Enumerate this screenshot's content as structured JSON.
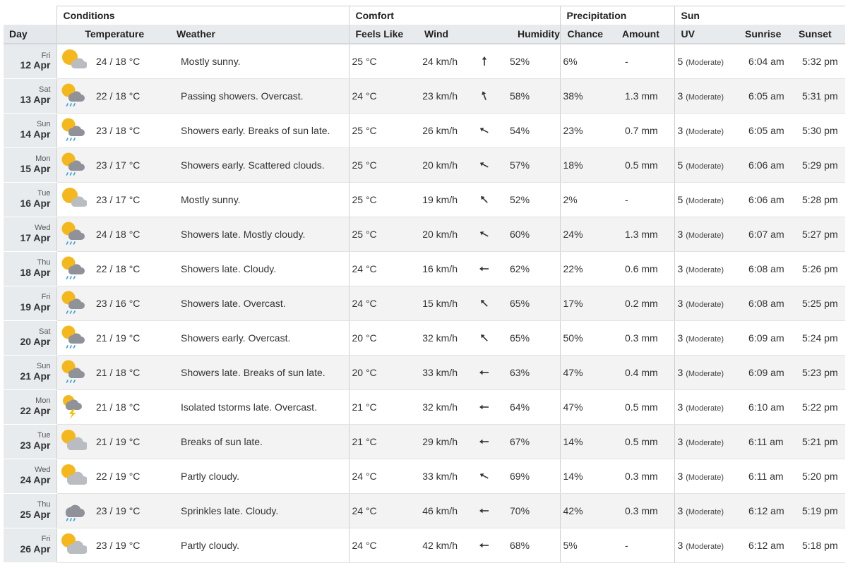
{
  "groups": {
    "conditions": "Conditions",
    "comfort": "Comfort",
    "precipitation": "Precipitation",
    "sun": "Sun"
  },
  "columns": {
    "day": "Day",
    "temperature": "Temperature",
    "weather": "Weather",
    "feels_like": "Feels Like",
    "wind": "Wind",
    "humidity": "Humidity",
    "chance": "Chance",
    "amount": "Amount",
    "uv": "UV",
    "sunrise": "Sunrise",
    "sunset": "Sunset"
  },
  "rows": [
    {
      "dow": "Fri",
      "date": "12 Apr",
      "icon": "mostly-sunny-icon",
      "temp": "24 / 18 °C",
      "weather": "Mostly sunny.",
      "feels": "25 °C",
      "wind": "24 km/h",
      "wind_dir_deg": 0,
      "humidity": "52%",
      "chance": "6%",
      "amount": "-",
      "uv": "5",
      "uv_desc": "(Moderate)",
      "sunrise": "6:04 am",
      "sunset": "5:32 pm"
    },
    {
      "dow": "Sat",
      "date": "13 Apr",
      "icon": "showers-icon",
      "temp": "22 / 18 °C",
      "weather": "Passing showers. Overcast.",
      "feels": "24 °C",
      "wind": "23 km/h",
      "wind_dir_deg": -20,
      "humidity": "58%",
      "chance": "38%",
      "amount": "1.3 mm",
      "uv": "3",
      "uv_desc": "(Moderate)",
      "sunrise": "6:05 am",
      "sunset": "5:31 pm"
    },
    {
      "dow": "Sun",
      "date": "14 Apr",
      "icon": "showers-icon",
      "temp": "23 / 18 °C",
      "weather": "Showers early. Breaks of sun late.",
      "feels": "25 °C",
      "wind": "26 km/h",
      "wind_dir_deg": -62,
      "humidity": "54%",
      "chance": "23%",
      "amount": "0.7 mm",
      "uv": "3",
      "uv_desc": "(Moderate)",
      "sunrise": "6:05 am",
      "sunset": "5:30 pm"
    },
    {
      "dow": "Mon",
      "date": "15 Apr",
      "icon": "showers-icon",
      "temp": "23 / 17 °C",
      "weather": "Showers early. Scattered clouds.",
      "feels": "25 °C",
      "wind": "20 km/h",
      "wind_dir_deg": -62,
      "humidity": "57%",
      "chance": "18%",
      "amount": "0.5 mm",
      "uv": "5",
      "uv_desc": "(Moderate)",
      "sunrise": "6:06 am",
      "sunset": "5:29 pm"
    },
    {
      "dow": "Tue",
      "date": "16 Apr",
      "icon": "mostly-sunny-icon",
      "temp": "23 / 17 °C",
      "weather": "Mostly sunny.",
      "feels": "25 °C",
      "wind": "19 km/h",
      "wind_dir_deg": -45,
      "humidity": "52%",
      "chance": "2%",
      "amount": "-",
      "uv": "5",
      "uv_desc": "(Moderate)",
      "sunrise": "6:06 am",
      "sunset": "5:28 pm"
    },
    {
      "dow": "Wed",
      "date": "17 Apr",
      "icon": "showers-icon",
      "temp": "24 / 18 °C",
      "weather": "Showers late. Mostly cloudy.",
      "feels": "25 °C",
      "wind": "20 km/h",
      "wind_dir_deg": -62,
      "humidity": "60%",
      "chance": "24%",
      "amount": "1.3 mm",
      "uv": "3",
      "uv_desc": "(Moderate)",
      "sunrise": "6:07 am",
      "sunset": "5:27 pm"
    },
    {
      "dow": "Thu",
      "date": "18 Apr",
      "icon": "showers-icon",
      "temp": "22 / 18 °C",
      "weather": "Showers late. Cloudy.",
      "feels": "24 °C",
      "wind": "16 km/h",
      "wind_dir_deg": -90,
      "humidity": "62%",
      "chance": "22%",
      "amount": "0.6 mm",
      "uv": "3",
      "uv_desc": "(Moderate)",
      "sunrise": "6:08 am",
      "sunset": "5:26 pm"
    },
    {
      "dow": "Fri",
      "date": "19 Apr",
      "icon": "showers-icon",
      "temp": "23 / 16 °C",
      "weather": "Showers late. Overcast.",
      "feels": "24 °C",
      "wind": "15 km/h",
      "wind_dir_deg": -45,
      "humidity": "65%",
      "chance": "17%",
      "amount": "0.2 mm",
      "uv": "3",
      "uv_desc": "(Moderate)",
      "sunrise": "6:08 am",
      "sunset": "5:25 pm"
    },
    {
      "dow": "Sat",
      "date": "20 Apr",
      "icon": "showers-icon",
      "temp": "21 / 19 °C",
      "weather": "Showers early. Overcast.",
      "feels": "20 °C",
      "wind": "32 km/h",
      "wind_dir_deg": -45,
      "humidity": "65%",
      "chance": "50%",
      "amount": "0.3 mm",
      "uv": "3",
      "uv_desc": "(Moderate)",
      "sunrise": "6:09 am",
      "sunset": "5:24 pm"
    },
    {
      "dow": "Sun",
      "date": "21 Apr",
      "icon": "showers-icon",
      "temp": "21 / 18 °C",
      "weather": "Showers late. Breaks of sun late.",
      "feels": "20 °C",
      "wind": "33 km/h",
      "wind_dir_deg": -90,
      "humidity": "63%",
      "chance": "47%",
      "amount": "0.4 mm",
      "uv": "3",
      "uv_desc": "(Moderate)",
      "sunrise": "6:09 am",
      "sunset": "5:23 pm"
    },
    {
      "dow": "Mon",
      "date": "22 Apr",
      "icon": "thunderstorm-icon",
      "temp": "21 / 18 °C",
      "weather": "Isolated tstorms late. Overcast.",
      "feels": "21 °C",
      "wind": "32 km/h",
      "wind_dir_deg": -90,
      "humidity": "64%",
      "chance": "47%",
      "amount": "0.5 mm",
      "uv": "3",
      "uv_desc": "(Moderate)",
      "sunrise": "6:10 am",
      "sunset": "5:22 pm"
    },
    {
      "dow": "Tue",
      "date": "23 Apr",
      "icon": "partly-cloudy-icon",
      "temp": "21 / 19 °C",
      "weather": "Breaks of sun late.",
      "feels": "21 °C",
      "wind": "29 km/h",
      "wind_dir_deg": -90,
      "humidity": "67%",
      "chance": "14%",
      "amount": "0.5 mm",
      "uv": "3",
      "uv_desc": "(Moderate)",
      "sunrise": "6:11 am",
      "sunset": "5:21 pm"
    },
    {
      "dow": "Wed",
      "date": "24 Apr",
      "icon": "partly-cloudy-icon",
      "temp": "22 / 19 °C",
      "weather": "Partly cloudy.",
      "feels": "24 °C",
      "wind": "33 km/h",
      "wind_dir_deg": -62,
      "humidity": "69%",
      "chance": "14%",
      "amount": "0.3 mm",
      "uv": "3",
      "uv_desc": "(Moderate)",
      "sunrise": "6:11 am",
      "sunset": "5:20 pm"
    },
    {
      "dow": "Thu",
      "date": "25 Apr",
      "icon": "sprinkles-icon",
      "temp": "23 / 19 °C",
      "weather": "Sprinkles late. Cloudy.",
      "feels": "24 °C",
      "wind": "46 km/h",
      "wind_dir_deg": -90,
      "humidity": "70%",
      "chance": "42%",
      "amount": "0.3 mm",
      "uv": "3",
      "uv_desc": "(Moderate)",
      "sunrise": "6:12 am",
      "sunset": "5:19 pm"
    },
    {
      "dow": "Fri",
      "date": "26 Apr",
      "icon": "partly-cloudy-icon",
      "temp": "23 / 19 °C",
      "weather": "Partly cloudy.",
      "feels": "24 °C",
      "wind": "42 km/h",
      "wind_dir_deg": -90,
      "humidity": "68%",
      "chance": "5%",
      "amount": "-",
      "uv": "3",
      "uv_desc": "(Moderate)",
      "sunrise": "6:12 am",
      "sunset": "5:18 pm"
    }
  ],
  "colors": {
    "sun": "#f5b81c",
    "cloud": "#b9bdc2",
    "dark_cloud": "#8f9399",
    "rain": "#3aa0d8",
    "bolt": "#f2c200",
    "header_bg": "#e8ebee",
    "alt_row_bg": "#f3f3f3"
  }
}
